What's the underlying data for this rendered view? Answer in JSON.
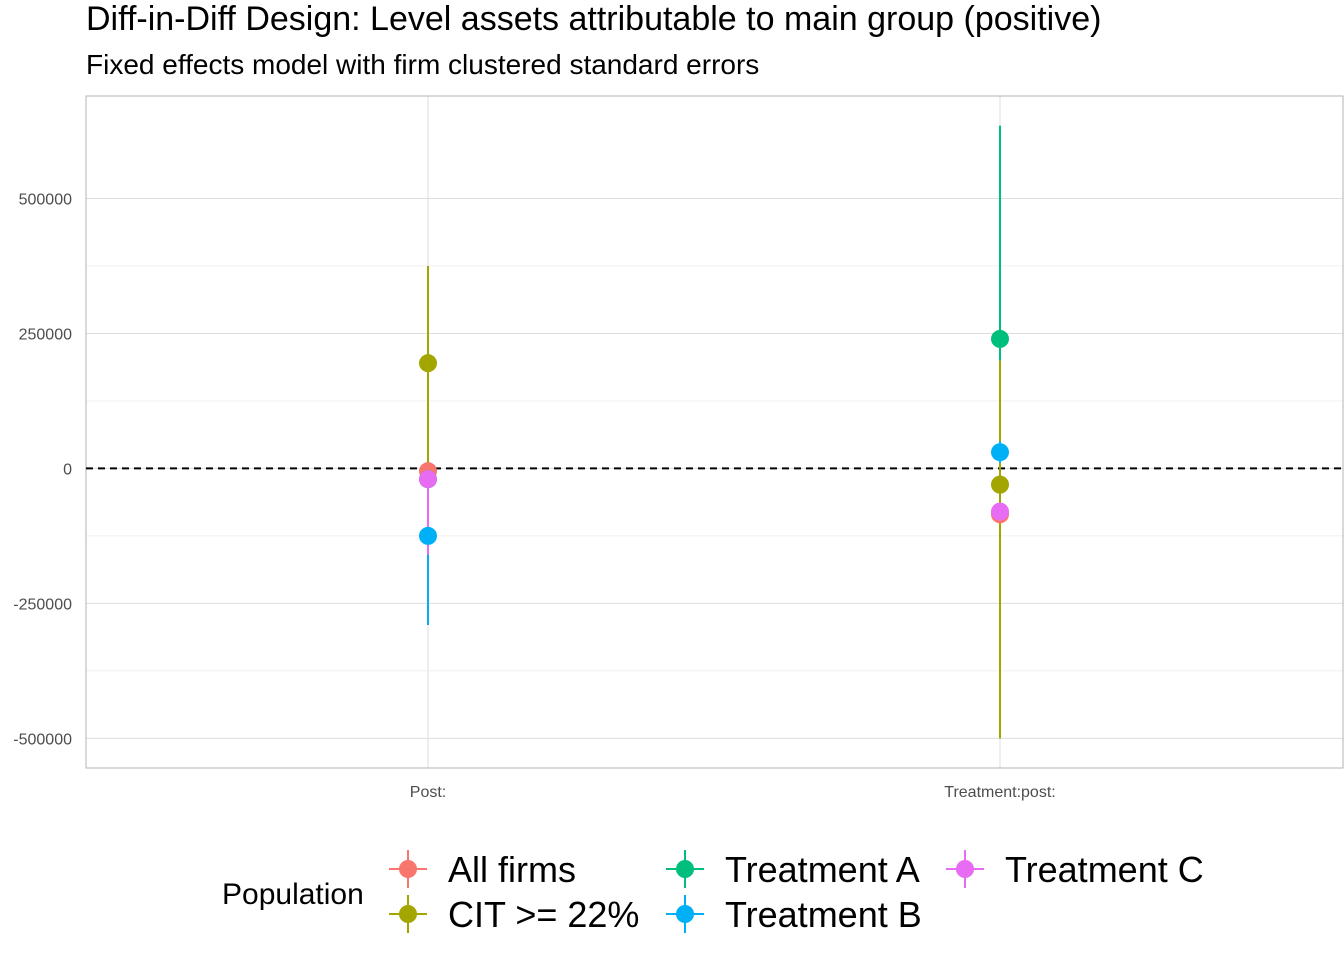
{
  "chart_data": {
    "type": "scatter",
    "title": "Diff-in-Diff Design: Level assets attributable to main group (positive)",
    "subtitle": "Fixed effects model with firm clustered standard errors",
    "xlabel": "",
    "ylabel": "",
    "categories": [
      "Post:",
      "Treatment:post:"
    ],
    "ylim": [
      -555000,
      690000
    ],
    "yticks": [
      -500000,
      -250000,
      0,
      250000,
      500000
    ],
    "ytick_labels": [
      "-500000",
      "-250000",
      "0",
      "250000",
      "500000"
    ],
    "reference_line": {
      "y": 0,
      "style": "dashed"
    },
    "grid": true,
    "legend": {
      "title": "Population",
      "position": "bottom"
    },
    "series": [
      {
        "name": "All firms",
        "color": "#F8766D",
        "estimates": [
          -5000,
          -85000
        ],
        "lower": [
          -20000,
          -100000
        ],
        "upper": [
          10000,
          -70000
        ]
      },
      {
        "name": "CIT >= 22%",
        "color": "#A3A500",
        "estimates": [
          195000,
          -30000
        ],
        "lower": [
          0,
          -500000
        ],
        "upper": [
          375000,
          440000
        ]
      },
      {
        "name": "Treatment A",
        "color": "#00BF7D",
        "estimates": [
          -20000,
          240000
        ],
        "lower": [
          -40000,
          200000
        ],
        "upper": [
          0,
          635000
        ]
      },
      {
        "name": "Treatment B",
        "color": "#00B0F6",
        "estimates": [
          -125000,
          30000
        ],
        "lower": [
          -290000,
          10000
        ],
        "upper": [
          -5000,
          50000
        ]
      },
      {
        "name": "Treatment C",
        "color": "#E76BF3",
        "estimates": [
          -20000,
          -80000
        ],
        "lower": [
          -160000,
          -95000
        ],
        "upper": [
          -5000,
          -65000
        ]
      }
    ]
  }
}
